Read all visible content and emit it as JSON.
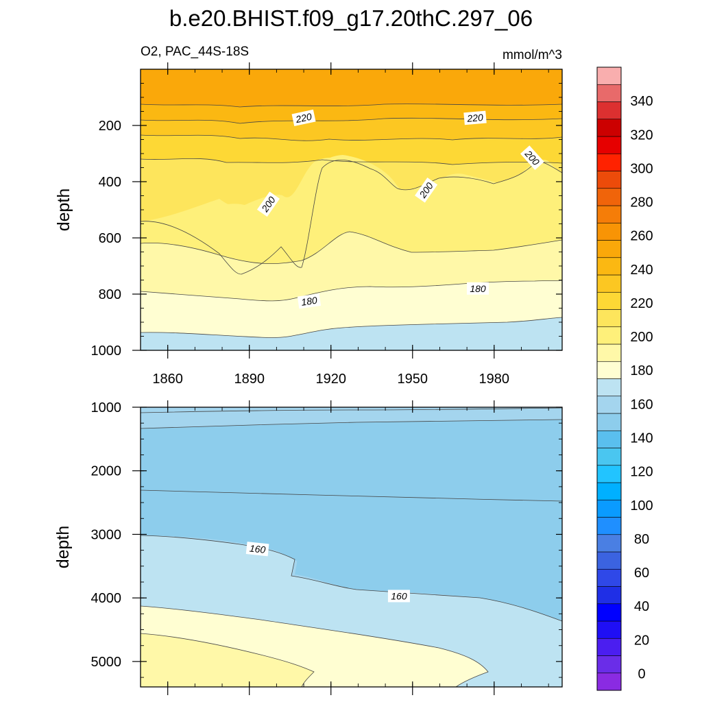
{
  "chart_data": {
    "type": "contour",
    "title": "b.e20.BHIST.f09_g17.20thC.297_06",
    "variable_label": "O2, PAC_44S-18S",
    "units_label": "mmol/m^3",
    "x_ticks": [
      "1860",
      "1890",
      "1920",
      "1950",
      "1980"
    ],
    "x_values": [
      1860,
      1890,
      1920,
      1950,
      1980
    ],
    "xlim": [
      1850,
      2005
    ],
    "panels": [
      {
        "name": "upper",
        "ylabel": "depth",
        "ylim": [
          0,
          1000
        ],
        "y_ticks": [
          "200",
          "400",
          "600",
          "800",
          "1000"
        ],
        "y_values": [
          200,
          400,
          600,
          800,
          1000
        ],
        "contour_labels": [
          {
            "text": "220",
            "year": 1910,
            "depth": 173,
            "angle": -12
          },
          {
            "text": "220",
            "year": 1973,
            "depth": 173,
            "angle": -5
          },
          {
            "text": "200",
            "year": 1897,
            "depth": 480,
            "angle": -55
          },
          {
            "text": "200",
            "year": 1955,
            "depth": 430,
            "angle": -55
          },
          {
            "text": "200",
            "year": 1994,
            "depth": 315,
            "angle": 48
          },
          {
            "text": "180",
            "year": 1912,
            "depth": 825,
            "angle": -8
          },
          {
            "text": "180",
            "year": 1974,
            "depth": 780,
            "angle": 0
          }
        ]
      },
      {
        "name": "lower",
        "ylabel": "depth",
        "ylim": [
          1000,
          5400
        ],
        "y_ticks": [
          "1000",
          "2000",
          "3000",
          "4000",
          "5000"
        ],
        "y_values": [
          1000,
          2000,
          3000,
          4000,
          5000
        ],
        "contour_labels": [
          {
            "text": "160",
            "year": 1893,
            "depth": 3230,
            "angle": 6
          },
          {
            "text": "160",
            "year": 1945,
            "depth": 3970,
            "angle": 0
          }
        ]
      }
    ],
    "colorbar": {
      "labels": [
        "0",
        "20",
        "40",
        "60",
        "80",
        "100",
        "120",
        "140",
        "160",
        "180",
        "200",
        "220",
        "240",
        "260",
        "280",
        "300",
        "320",
        "340"
      ],
      "min": -10,
      "max": 360,
      "step": 10,
      "colors": [
        "#8a2be2",
        "#6a2de8",
        "#4b1ef0",
        "#1f0ff5",
        "#0000ff",
        "#1f2fe6",
        "#2f48e8",
        "#3b63e0",
        "#4a7fe3",
        "#1f8fff",
        "#0a9bff",
        "#00b0ff",
        "#22c4ff",
        "#4ac6f0",
        "#5abfee",
        "#8dcdec",
        "#a4d5ee",
        "#bde3f2",
        "#fffed2",
        "#fff8a8",
        "#fef07a",
        "#fde55c",
        "#fdd835",
        "#fcc722",
        "#fbb812",
        "#faa80a",
        "#f89405",
        "#f57d08",
        "#f0640a",
        "#ec4b0a",
        "#ff2200",
        "#e60000",
        "#cc0000",
        "#dc3030",
        "#e86a6a",
        "#f9aeae"
      ]
    }
  }
}
